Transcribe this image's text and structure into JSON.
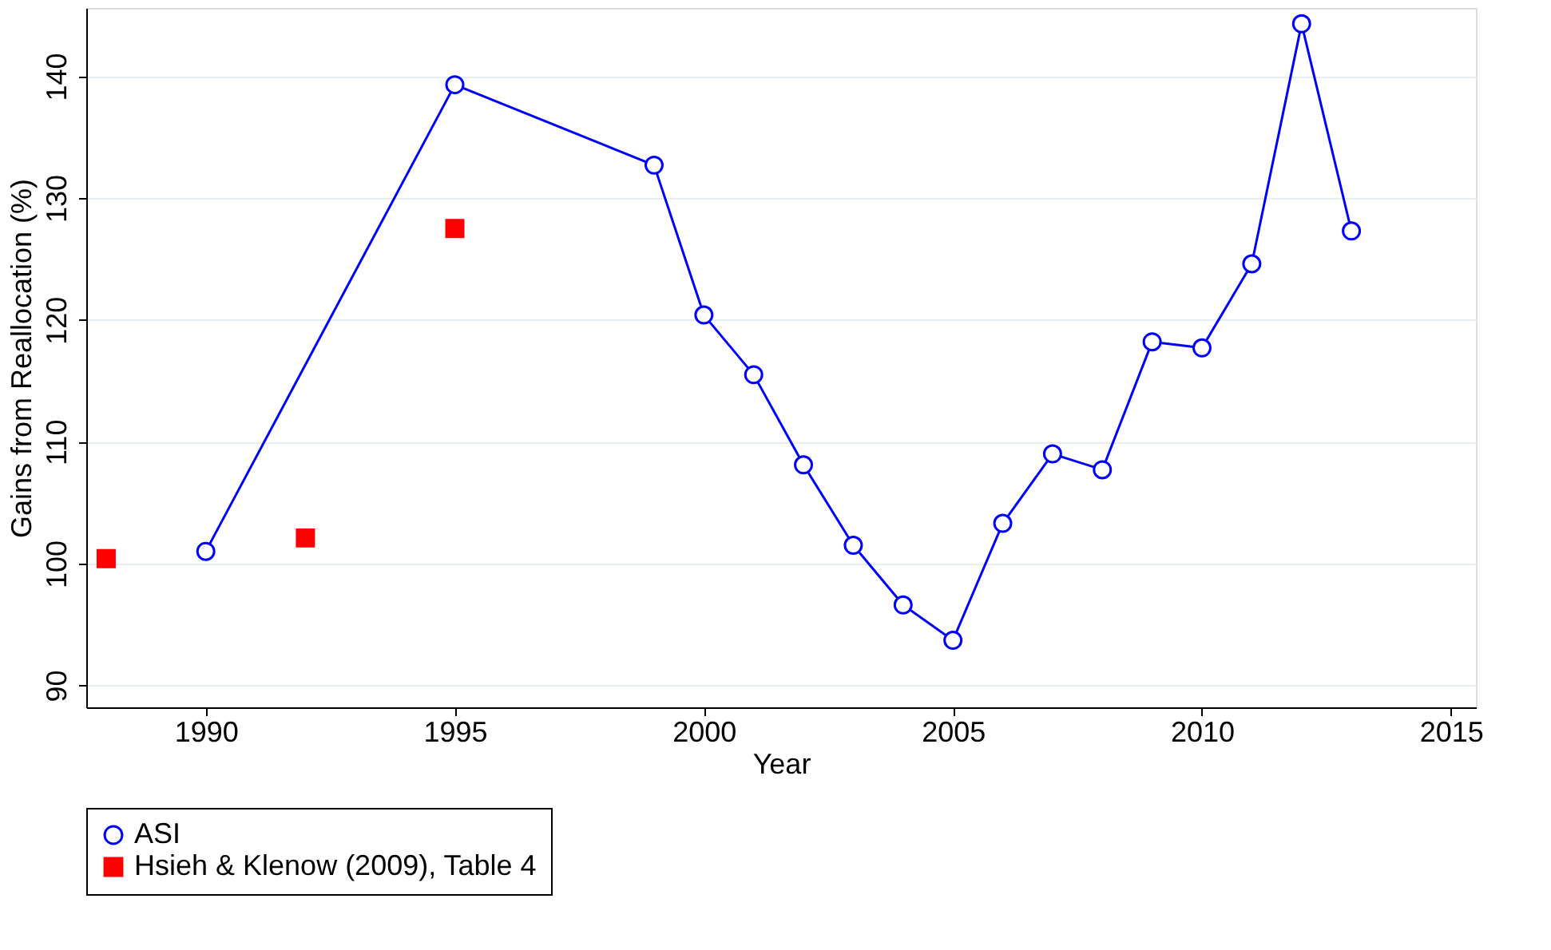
{
  "chart_data": {
    "type": "line",
    "xlabel": "Year",
    "ylabel": "Gains from Reallocation (%)",
    "xlim": [
      1987.6,
      2015.5
    ],
    "ylim": [
      88.2,
      145.6
    ],
    "xticks": [
      1990,
      1995,
      2000,
      2005,
      2010,
      2015
    ],
    "yticks": [
      90,
      100,
      110,
      120,
      130,
      140
    ],
    "grid": "y",
    "legend": "bottom",
    "series": [
      {
        "name": "ASI",
        "marker": "circle",
        "color": "#0000ff",
        "x": [
          1990,
          1995,
          1999,
          2000,
          2001,
          2002,
          2003,
          2004,
          2005,
          2006,
          2007,
          2008,
          2009,
          2010,
          2011,
          2012,
          2013
        ],
        "values": [
          101.0,
          139.3,
          132.7,
          120.4,
          115.5,
          108.1,
          101.5,
          96.6,
          93.7,
          103.3,
          109.0,
          107.7,
          118.2,
          117.7,
          124.6,
          144.3,
          127.3
        ]
      },
      {
        "name": "Hsieh & Klenow (2009), Table 4",
        "type": "scatter",
        "marker": "square",
        "color": "#ff0000",
        "x": [
          1988,
          1992,
          1995
        ],
        "values": [
          100.4,
          102.1,
          127.5
        ]
      }
    ]
  }
}
